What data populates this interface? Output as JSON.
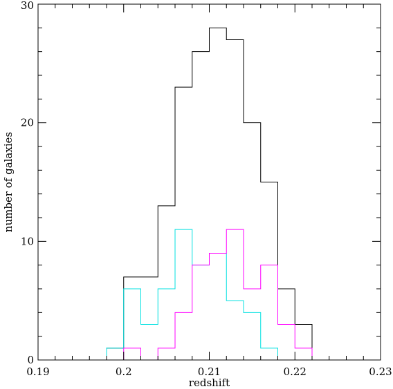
{
  "chart_data": {
    "type": "histogram",
    "xlabel": "redshift",
    "ylabel": "number of galaxies",
    "xlim": [
      0.19,
      0.23
    ],
    "ylim": [
      0,
      30
    ],
    "x_ticks": [
      0.19,
      0.2,
      0.21,
      0.22,
      0.23
    ],
    "x_tick_labels": [
      "0.19",
      "0.2",
      "0.21",
      "0.22",
      "0.23"
    ],
    "y_ticks": [
      0,
      10,
      20,
      30
    ],
    "y_tick_labels": [
      "0",
      "10",
      "20",
      "30"
    ],
    "bin_edges": [
      0.19,
      0.192,
      0.194,
      0.196,
      0.198,
      0.2,
      0.202,
      0.204,
      0.206,
      0.208,
      0.21,
      0.212,
      0.214,
      0.216,
      0.218,
      0.22,
      0.222,
      0.224,
      0.226,
      0.228,
      0.23
    ],
    "series": [
      {
        "color": "#000000",
        "values": [
          0,
          0,
          0,
          0,
          1,
          7,
          7,
          13,
          23,
          26,
          28,
          27,
          20,
          15,
          6,
          3,
          0,
          0,
          0,
          0
        ]
      },
      {
        "color": "#00e0e0",
        "values": [
          0,
          0,
          0,
          0,
          1,
          6,
          3,
          6,
          11,
          8,
          9,
          5,
          4,
          1,
          0,
          0,
          0,
          0,
          0,
          0
        ]
      },
      {
        "color": "#ff00ff",
        "values": [
          0,
          0,
          0,
          0,
          0,
          1,
          0,
          1,
          4,
          8,
          9,
          11,
          6,
          8,
          3,
          1,
          0,
          0,
          0,
          0
        ]
      }
    ],
    "grid": false,
    "legend": "none"
  }
}
